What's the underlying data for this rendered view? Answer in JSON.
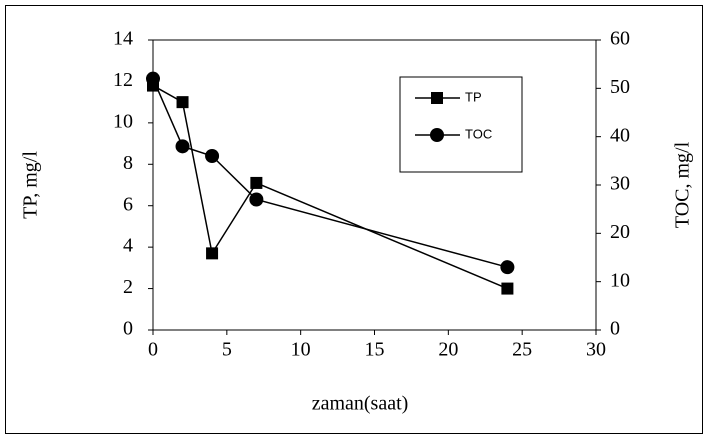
{
  "chart_data": {
    "type": "line",
    "x": [
      0,
      2,
      4,
      7,
      24
    ],
    "series": [
      {
        "name": "TP",
        "color": "#000000",
        "marker": "square",
        "values": [
          11.8,
          11.0,
          3.7,
          7.1,
          2.0
        ]
      },
      {
        "name": "TOC",
        "color": "#000000",
        "marker": "circle",
        "axis": "y2",
        "values": [
          52,
          38,
          36,
          27,
          13
        ]
      }
    ],
    "xlabel": "zaman(saat)",
    "ylabel": "TP, mg/l",
    "y2label": "TOC, mg/l",
    "xlim": [
      0,
      30
    ],
    "xticks": [
      0,
      5,
      10,
      15,
      20,
      25,
      30
    ],
    "ylim": [
      0,
      14
    ],
    "yticks": [
      0,
      2,
      4,
      6,
      8,
      10,
      12,
      14
    ],
    "y2lim": [
      0,
      60
    ],
    "y2ticks": [
      0,
      10,
      20,
      30,
      40,
      50,
      60
    ],
    "legend": "upper right",
    "grid": false
  }
}
